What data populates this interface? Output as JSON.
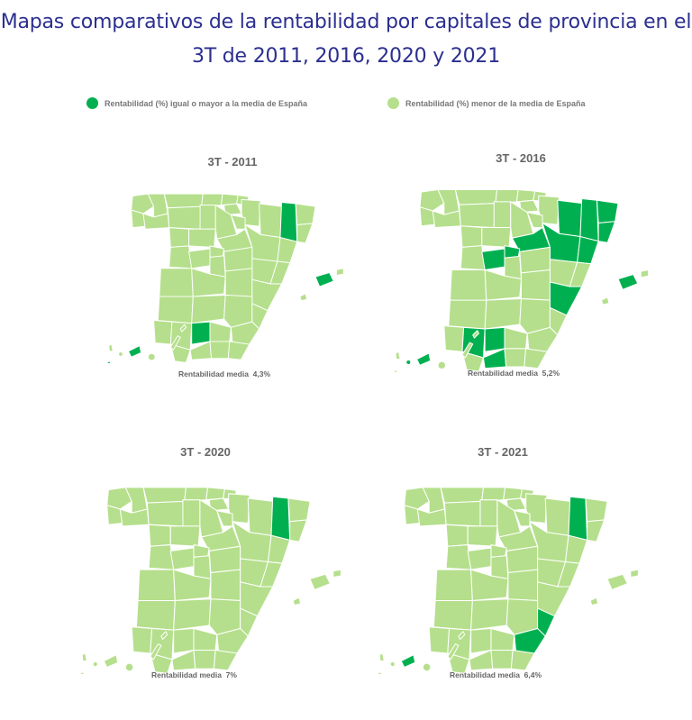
{
  "title": "Mapas comparativos de la rentabilidad por capitales de provincia en el 3T de 2011, 2016, 2020 y 2021",
  "legend": {
    "above": {
      "label": "Rentabilidad (%) igual o mayor a la media de España",
      "color": "#00b050"
    },
    "below": {
      "label": "Rentabilidad (%) menor de la media de España",
      "color": "#b5df8c"
    }
  },
  "colors": {
    "above": "#00b050",
    "below": "#b5df8c",
    "border": "#ffffff"
  },
  "maps": [
    {
      "id": "2011",
      "title": "3T - 2011",
      "average_label": "Rentabilidad media",
      "average_value": "4,3%",
      "above_average": [
        "Lleida",
        "Córdoba",
        "Baleares",
        "Santa Cruz de Tenerife",
        "El Hierro"
      ]
    },
    {
      "id": "2016",
      "title": "3T - 2016",
      "average_label": "Rentabilidad media",
      "average_value": "5,2%",
      "above_average": [
        "Huesca",
        "Zaragoza",
        "Lleida",
        "Barcelona",
        "Girona",
        "Tarragona",
        "Soria",
        "Segovia",
        "Ávila",
        "Valencia",
        "Sevilla",
        "Córdoba",
        "Málaga",
        "Baleares",
        "Santa Cruz de Tenerife",
        "La Gomera"
      ]
    },
    {
      "id": "2020",
      "title": "3T - 2020",
      "average_label": "Rentabilidad media",
      "average_value": "7%",
      "above_average": [
        "Lleida"
      ]
    },
    {
      "id": "2021",
      "title": "3T - 2021",
      "average_label": "Rentabilidad media",
      "average_value": "6,4%",
      "above_average": [
        "Lleida",
        "Murcia",
        "Alicante",
        "Santa Cruz de Tenerife"
      ]
    }
  ]
}
